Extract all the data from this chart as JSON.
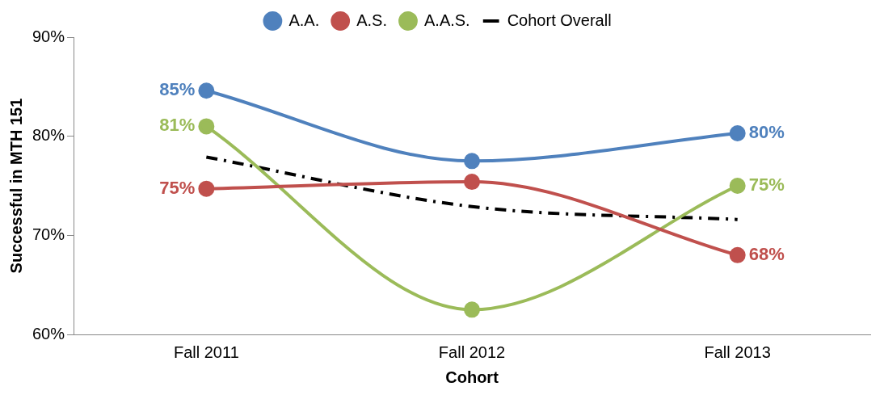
{
  "chart_data": {
    "type": "line",
    "xlabel": "Cohort",
    "ylabel": "Successful in MTH 151",
    "categories": [
      "Fall 2011",
      "Fall 2012",
      "Fall 2013"
    ],
    "series": [
      {
        "name": "A.A.",
        "color": "#4f81bd",
        "values": [
          84.6,
          77.5,
          80.3
        ],
        "value_labels": [
          "85%",
          null,
          "80%"
        ]
      },
      {
        "name": "A.S.",
        "color": "#c0504d",
        "values": [
          74.7,
          75.4,
          68
        ],
        "value_labels": [
          "75%",
          null,
          "68%"
        ]
      },
      {
        "name": "A.A.S.",
        "color": "#9bbb59",
        "values": [
          81,
          62.5,
          75
        ],
        "value_labels": [
          "81%",
          null,
          "75%"
        ]
      },
      {
        "name": "Cohort Overall",
        "color": "#000000",
        "values": [
          77.9,
          72.9,
          71.6
        ],
        "marker": "none",
        "line_style": "dashed"
      }
    ],
    "ylim": [
      60,
      90
    ],
    "yticks": [
      {
        "value": 60,
        "label": "60%"
      },
      {
        "value": 70,
        "label": "70%"
      },
      {
        "value": 80,
        "label": "80%"
      },
      {
        "value": 90,
        "label": "90%"
      }
    ],
    "grid": false,
    "legend": "top",
    "marker": "circle",
    "line_style": "solid"
  }
}
